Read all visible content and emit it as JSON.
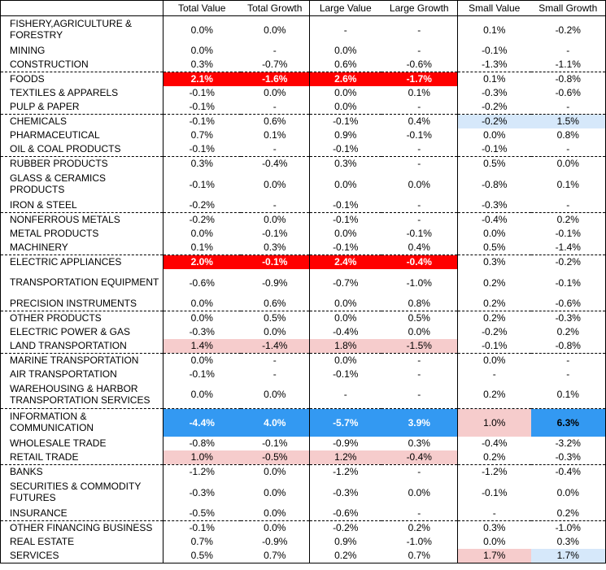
{
  "headers": [
    "",
    "Total Value",
    "Total Growth",
    "Large Value",
    "Large Growth",
    "Small Value",
    "Small Growth"
  ],
  "colors": {
    "red": "#ff0000",
    "pink": "#f6cccc",
    "light_blue": "#d6e8fa",
    "blue": "#3399f2"
  },
  "rows": [
    {
      "sector": "FISHERY,AGRICULTURE & FORESTRY",
      "values": [
        "0.0%",
        "0.0%",
        "-",
        "-",
        "0.1%",
        "-0.2%"
      ],
      "hl": [
        null,
        null,
        null,
        null,
        null,
        null
      ]
    },
    {
      "sector": "MINING",
      "values": [
        "0.0%",
        "-",
        "0.0%",
        "-",
        "-0.1%",
        "-"
      ],
      "hl": [
        null,
        null,
        null,
        null,
        null,
        null
      ]
    },
    {
      "sector": "CONSTRUCTION",
      "values": [
        "0.3%",
        "-0.7%",
        "0.6%",
        "-0.6%",
        "-1.3%",
        "-1.1%"
      ],
      "hl": [
        null,
        null,
        null,
        null,
        null,
        null
      ]
    },
    {
      "sector": "FOODS",
      "values": [
        "2.1%",
        "-1.6%",
        "2.6%",
        "-1.7%",
        "0.1%",
        "-0.8%"
      ],
      "hl": [
        "red",
        "red",
        "red",
        "red",
        null,
        null
      ]
    },
    {
      "sector": "TEXTILES & APPARELS",
      "values": [
        "-0.1%",
        "0.0%",
        "0.0%",
        "0.1%",
        "-0.3%",
        "-0.6%"
      ],
      "hl": [
        null,
        null,
        null,
        null,
        null,
        null
      ]
    },
    {
      "sector": "PULP & PAPER",
      "values": [
        "-0.1%",
        "-",
        "0.0%",
        "-",
        "-0.2%",
        "-"
      ],
      "hl": [
        null,
        null,
        null,
        null,
        null,
        null
      ]
    },
    {
      "sector": "CHEMICALS",
      "values": [
        "-0.1%",
        "0.6%",
        "-0.1%",
        "0.4%",
        "-0.2%",
        "1.5%"
      ],
      "hl": [
        null,
        null,
        null,
        null,
        "light_blue",
        "light_blue"
      ]
    },
    {
      "sector": "PHARMACEUTICAL",
      "values": [
        "0.7%",
        "0.1%",
        "0.9%",
        "-0.1%",
        "0.0%",
        "0.8%"
      ],
      "hl": [
        null,
        null,
        null,
        null,
        null,
        null
      ]
    },
    {
      "sector": "OIL & COAL PRODUCTS",
      "values": [
        "-0.1%",
        "-",
        "-0.1%",
        "-",
        "-0.1%",
        "-"
      ],
      "hl": [
        null,
        null,
        null,
        null,
        null,
        null
      ]
    },
    {
      "sector": "RUBBER PRODUCTS",
      "values": [
        "0.3%",
        "-0.4%",
        "0.3%",
        "-",
        "0.5%",
        "0.0%"
      ],
      "hl": [
        null,
        null,
        null,
        null,
        null,
        null
      ]
    },
    {
      "sector": "GLASS & CERAMICS PRODUCTS",
      "values": [
        "-0.1%",
        "0.0%",
        "0.0%",
        "0.0%",
        "-0.8%",
        "0.1%"
      ],
      "hl": [
        null,
        null,
        null,
        null,
        null,
        null
      ]
    },
    {
      "sector": "IRON & STEEL",
      "values": [
        "-0.2%",
        "-",
        "-0.1%",
        "-",
        "-0.3%",
        "-"
      ],
      "hl": [
        null,
        null,
        null,
        null,
        null,
        null
      ]
    },
    {
      "sector": "NONFERROUS METALS",
      "values": [
        "-0.2%",
        "0.0%",
        "-0.1%",
        "-",
        "-0.4%",
        "0.2%"
      ],
      "hl": [
        null,
        null,
        null,
        null,
        null,
        null
      ]
    },
    {
      "sector": "METAL PRODUCTS",
      "values": [
        "0.0%",
        "-0.1%",
        "0.0%",
        "-0.1%",
        "0.0%",
        "-0.1%"
      ],
      "hl": [
        null,
        null,
        null,
        null,
        null,
        null
      ]
    },
    {
      "sector": "MACHINERY",
      "values": [
        "0.1%",
        "0.3%",
        "-0.1%",
        "0.4%",
        "0.5%",
        "-1.4%"
      ],
      "hl": [
        null,
        null,
        null,
        null,
        null,
        null
      ]
    },
    {
      "sector": "ELECTRIC APPLIANCES",
      "values": [
        "2.0%",
        "-0.1%",
        "2.4%",
        "-0.4%",
        "0.3%",
        "-0.2%"
      ],
      "hl": [
        "red",
        "red",
        "red",
        "red",
        null,
        null
      ]
    },
    {
      "sector": "TRANSPORTATION EQUIPMENT",
      "values": [
        "-0.6%",
        "-0.9%",
        "-0.7%",
        "-1.0%",
        "0.2%",
        "-0.1%"
      ],
      "hl": [
        null,
        null,
        null,
        null,
        null,
        null
      ]
    },
    {
      "sector": "PRECISION INSTRUMENTS",
      "values": [
        "0.0%",
        "0.6%",
        "0.0%",
        "0.8%",
        "0.2%",
        "-0.6%"
      ],
      "hl": [
        null,
        null,
        null,
        null,
        null,
        null
      ]
    },
    {
      "sector": "OTHER PRODUCTS",
      "values": [
        "0.0%",
        "0.5%",
        "0.0%",
        "0.5%",
        "0.2%",
        "-0.3%"
      ],
      "hl": [
        null,
        null,
        null,
        null,
        null,
        null
      ]
    },
    {
      "sector": "ELECTRIC POWER & GAS",
      "values": [
        "-0.3%",
        "0.0%",
        "-0.4%",
        "0.0%",
        "-0.2%",
        "0.2%"
      ],
      "hl": [
        null,
        null,
        null,
        null,
        null,
        null
      ]
    },
    {
      "sector": "LAND TRANSPORTATION",
      "values": [
        "1.4%",
        "-1.4%",
        "1.8%",
        "-1.5%",
        "-0.1%",
        "-0.8%"
      ],
      "hl": [
        "pink",
        "pink",
        "pink",
        "pink",
        null,
        null
      ]
    },
    {
      "sector": "MARINE TRANSPORTATION",
      "values": [
        "0.0%",
        "-",
        "0.0%",
        "-",
        "0.0%",
        "-"
      ],
      "hl": [
        null,
        null,
        null,
        null,
        null,
        null
      ]
    },
    {
      "sector": "AIR TRANSPORTATION",
      "values": [
        "-0.1%",
        "-",
        "-0.1%",
        "-",
        "-",
        "-"
      ],
      "hl": [
        null,
        null,
        null,
        null,
        null,
        null
      ]
    },
    {
      "sector": "WAREHOUSING & HARBOR TRANSPORTATION SERVICES",
      "values": [
        "0.0%",
        "0.0%",
        "-",
        "-",
        "0.2%",
        "0.1%"
      ],
      "hl": [
        null,
        null,
        null,
        null,
        null,
        null
      ]
    },
    {
      "sector": "INFORMATION & COMMUNICATION",
      "values": [
        "-4.4%",
        "4.0%",
        "-5.7%",
        "3.9%",
        "1.0%",
        "6.3%"
      ],
      "hl": [
        "blue",
        "blue",
        "blue",
        "blue",
        "pink",
        "blue-plain"
      ]
    },
    {
      "sector": "WHOLESALE TRADE",
      "values": [
        "-0.8%",
        "-0.1%",
        "-0.9%",
        "0.3%",
        "-0.4%",
        "-3.2%"
      ],
      "hl": [
        null,
        null,
        null,
        null,
        null,
        null
      ]
    },
    {
      "sector": "RETAIL TRADE",
      "values": [
        "1.0%",
        "-0.5%",
        "1.2%",
        "-0.4%",
        "0.2%",
        "-0.3%"
      ],
      "hl": [
        "pink",
        "pink",
        "pink",
        "pink",
        null,
        null
      ]
    },
    {
      "sector": "BANKS",
      "values": [
        "-1.2%",
        "0.0%",
        "-1.2%",
        "-",
        "-1.2%",
        "-0.4%"
      ],
      "hl": [
        null,
        null,
        null,
        null,
        null,
        null
      ]
    },
    {
      "sector": "SECURITIES & COMMODITY FUTURES",
      "values": [
        "-0.3%",
        "0.0%",
        "-0.3%",
        "0.0%",
        "-0.1%",
        "0.0%"
      ],
      "hl": [
        null,
        null,
        null,
        null,
        null,
        null
      ]
    },
    {
      "sector": "INSURANCE",
      "values": [
        "-0.5%",
        "0.0%",
        "-0.6%",
        "-",
        "-",
        "0.2%"
      ],
      "hl": [
        null,
        null,
        null,
        null,
        null,
        null
      ]
    },
    {
      "sector": "OTHER FINANCING BUSINESS",
      "values": [
        "-0.1%",
        "0.0%",
        "-0.2%",
        "0.2%",
        "0.3%",
        "-1.0%"
      ],
      "hl": [
        null,
        null,
        null,
        null,
        null,
        null
      ]
    },
    {
      "sector": "REAL ESTATE",
      "values": [
        "0.7%",
        "-0.9%",
        "0.9%",
        "-1.0%",
        "0.0%",
        "0.3%"
      ],
      "hl": [
        null,
        null,
        null,
        null,
        null,
        null
      ]
    },
    {
      "sector": "SERVICES",
      "values": [
        "0.5%",
        "0.7%",
        "0.2%",
        "0.7%",
        "1.7%",
        "1.7%"
      ],
      "hl": [
        null,
        null,
        null,
        null,
        "pink",
        "light_blue"
      ]
    }
  ]
}
